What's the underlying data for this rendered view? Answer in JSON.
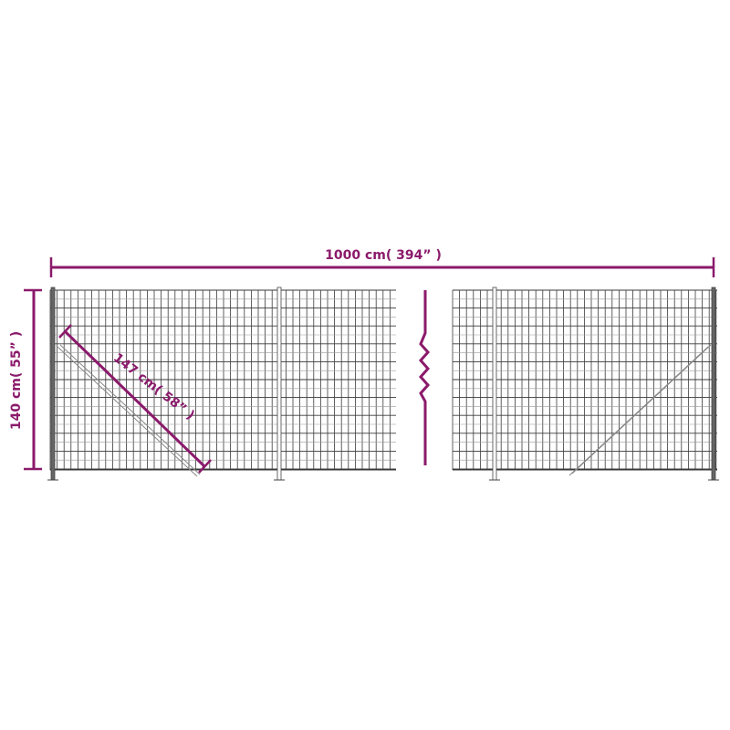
{
  "colors": {
    "dimension": "#8b1a6b",
    "wire": "#3a3a3a",
    "wire_light": "#9a9a9a"
  },
  "dimensions": {
    "length": "1000 cm( 394” )",
    "height": "140 cm( 55” )",
    "brace": "147 cm( 58” )"
  }
}
